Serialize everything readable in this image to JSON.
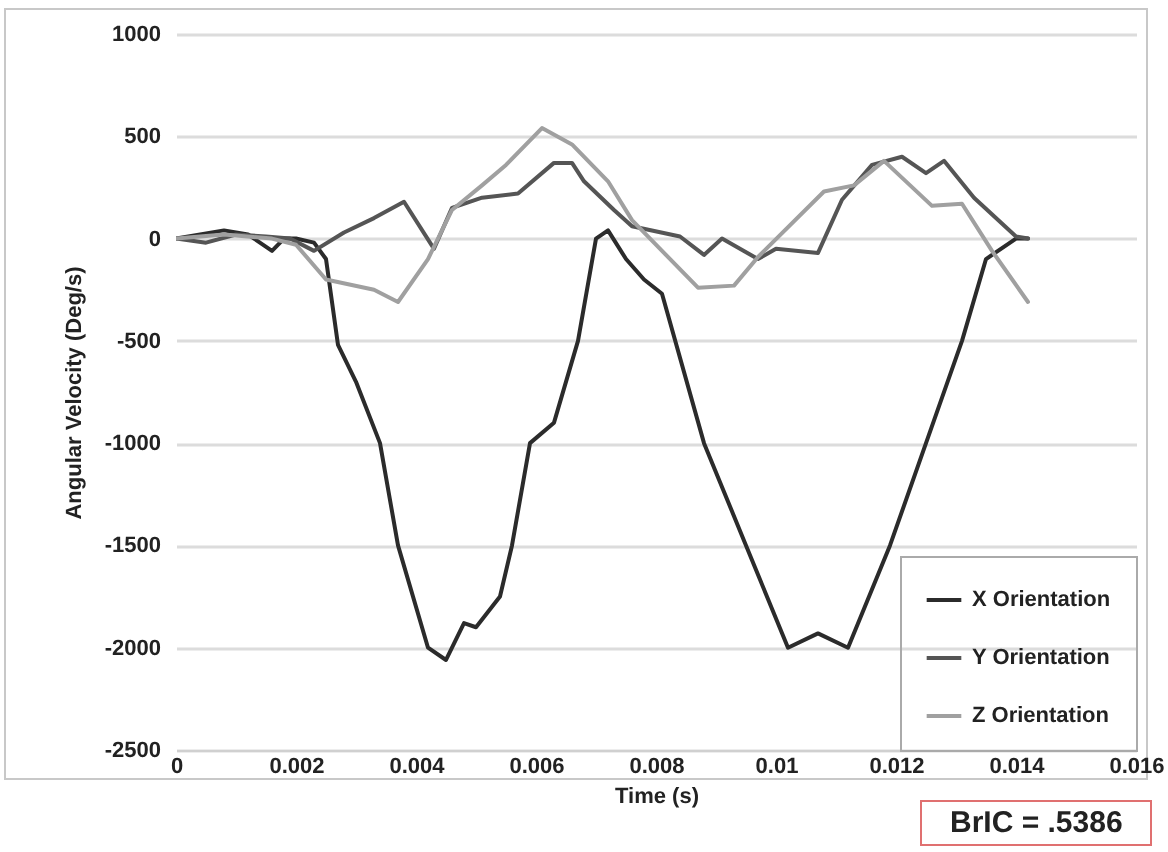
{
  "chart_data": {
    "type": "line",
    "xlabel": "Time (s)",
    "ylabel": "Angular Velocity (Deg/s)",
    "xlim": [
      0,
      0.016
    ],
    "xticks": [
      0,
      0.002,
      0.004,
      0.006,
      0.008,
      0.01,
      0.012,
      0.014,
      0.016
    ],
    "ylim": [
      -2500,
      1000
    ],
    "yticks": [
      -2500,
      -2000,
      -1500,
      -1000,
      -500,
      0,
      500,
      1000
    ],
    "grid": "y",
    "legend": "bottom right",
    "marker": "none",
    "line_style": "solid",
    "annotations": [
      "BrIC = .5386"
    ],
    "series": [
      {
        "name": "X Orientation",
        "color": "#2b2b2b",
        "x": [
          0,
          0.0008,
          0.0012,
          0.0016,
          0.0018,
          0.002,
          0.0023,
          0.0025,
          0.0027,
          0.003,
          0.0034,
          0.0037,
          0.0042,
          0.0045,
          0.0048,
          0.005,
          0.0054,
          0.0056,
          0.0059,
          0.0063,
          0.0067,
          0.007,
          0.0072,
          0.0075,
          0.0078,
          0.0081,
          0.0088,
          0.0095,
          0.0102,
          0.0107,
          0.0112,
          0.0119,
          0.0125,
          0.0131,
          0.0135,
          0.014,
          0.0142
        ],
        "values": [
          0,
          40,
          20,
          -60,
          0,
          0,
          -20,
          -100,
          -520,
          -700,
          -1000,
          -1500,
          -2000,
          -2060,
          -1880,
          -1900,
          -1750,
          -1500,
          -1000,
          -900,
          -500,
          0,
          40,
          -100,
          -200,
          -270,
          -1000,
          -1500,
          -2000,
          -1930,
          -2000,
          -1500,
          -1000,
          -500,
          -100,
          0,
          0
        ]
      },
      {
        "name": "Y Orientation",
        "color": "#555555",
        "x": [
          0,
          0.0005,
          0.001,
          0.0015,
          0.0019,
          0.0023,
          0.0028,
          0.0033,
          0.0038,
          0.0043,
          0.0046,
          0.0051,
          0.0057,
          0.0063,
          0.0066,
          0.0068,
          0.0073,
          0.0076,
          0.0084,
          0.0088,
          0.0091,
          0.0097,
          0.01,
          0.0107,
          0.0111,
          0.0116,
          0.0121,
          0.0125,
          0.0128,
          0.0133,
          0.014,
          0.0142
        ],
        "values": [
          0,
          -20,
          20,
          10,
          0,
          -60,
          30,
          100,
          180,
          -50,
          150,
          200,
          220,
          370,
          370,
          280,
          140,
          60,
          10,
          -80,
          0,
          -100,
          -50,
          -70,
          190,
          360,
          400,
          320,
          380,
          200,
          10,
          0
        ]
      },
      {
        "name": "Z Orientation",
        "color": "#a0a0a0",
        "x": [
          0,
          0.0008,
          0.0016,
          0.002,
          0.0025,
          0.0033,
          0.0037,
          0.0042,
          0.0046,
          0.0051,
          0.0055,
          0.0061,
          0.0066,
          0.0072,
          0.0076,
          0.0087,
          0.0093,
          0.0097,
          0.0108,
          0.0113,
          0.0118,
          0.0126,
          0.0131,
          0.0136,
          0.0142
        ],
        "values": [
          0,
          20,
          0,
          -30,
          -200,
          -250,
          -310,
          -100,
          140,
          260,
          360,
          540,
          460,
          280,
          90,
          -240,
          -230,
          -90,
          230,
          260,
          380,
          160,
          170,
          -60,
          -310
        ]
      }
    ]
  }
}
